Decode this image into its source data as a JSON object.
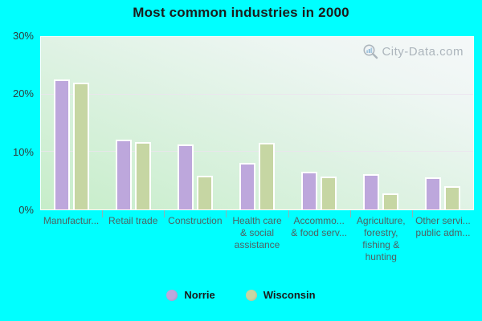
{
  "title": "Most common industries in 2000",
  "watermark": {
    "text": "City-Data.com",
    "icon": "magnifier-chart-icon"
  },
  "colors": {
    "background": "#00ffff",
    "norrie": "#bda7dc",
    "wisconsin": "#c6d6a3",
    "bar_border": "#ffffff",
    "gridline": "#ece3ee",
    "watermark": "#a5aeb6"
  },
  "chart_data": {
    "type": "bar",
    "title": "Most common industries in 2000",
    "categories": [
      "Manufactur...",
      "Retail trade",
      "Construction",
      "Health care & social assistance",
      "Accommo... & food serv...",
      "Agriculture, forestry, fishing & hunting",
      "Other servi... public adm..."
    ],
    "category_label_lines": [
      [
        "Manufactur..."
      ],
      [
        "Retail trade"
      ],
      [
        "Construction"
      ],
      [
        "Health care",
        "& social",
        "assistance"
      ],
      [
        "Accommo...",
        "& food serv..."
      ],
      [
        "Agriculture,",
        "forestry,",
        "fishing &",
        "hunting"
      ],
      [
        "Other servi...",
        "public adm..."
      ]
    ],
    "series": [
      {
        "name": "Norrie",
        "color": "#bda7dc",
        "values": [
          22.6,
          12.2,
          11.3,
          8.1,
          6.6,
          6.2,
          5.6
        ]
      },
      {
        "name": "Wisconsin",
        "color": "#c6d6a3",
        "values": [
          22.0,
          11.7,
          5.9,
          11.6,
          5.7,
          2.8,
          4.1
        ]
      }
    ],
    "ylim": [
      0,
      30
    ],
    "yticks": [
      "0%",
      "10%",
      "20%",
      "30%"
    ],
    "ytick_values": [
      0,
      10,
      20,
      30
    ],
    "xlabel": "",
    "ylabel": "",
    "grid": "horizontal",
    "legend_position": "bottom"
  },
  "legend": {
    "items": [
      {
        "label": "Norrie"
      },
      {
        "label": "Wisconsin"
      }
    ]
  }
}
